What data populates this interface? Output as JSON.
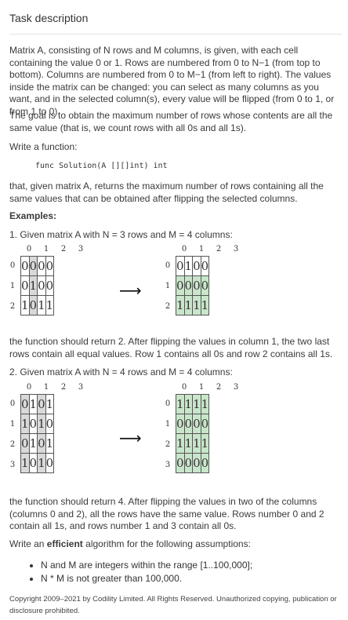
{
  "heading": "Task description",
  "paragraphs": {
    "p1": "Matrix A, consisting of N rows and M columns, is given, with each cell containing the value 0 or 1. Rows are numbered from 0 to N−1 (from top to bottom). Columns are numbered from 0 to M−1 (from left to right). The values inside the matrix can be changed: you can select as many columns as you want, and in the selected column(s), every value will be flipped (from 0 to 1, or from 1 to 0).",
    "p2": "The goal is to obtain the maximum number of rows whose contents are all the same value (that is, we count rows with all 0s and all 1s).",
    "p3": "Write a function:",
    "code": "func Solution(A [][]int) int",
    "p4": "that, given matrix A, returns the maximum number of rows containing all the same values that can be obtained after flipping the selected columns.",
    "examples_label": "Examples:",
    "ex1_intro": "1. Given matrix A with N = 3 rows and M = 4 columns:",
    "ex1_result": "the function should return 2. After flipping the values in column 1, the two last rows contain all equal values. Row 1 contains all 0s and row 2 contains all 1s.",
    "ex2_intro": "2. Given matrix A with N = 4 rows and M = 4 columns:",
    "ex2_result": "the function should return 4. After flipping the values in two of the columns (columns 0 and 2), all the rows have the same value. Rows number 0 and 2 contain all 1s, and rows number 1 and 3 contain all 0s.",
    "efficient_prefix": "Write an ",
    "efficient_word": "efficient",
    "efficient_suffix": " algorithm for the following assumptions:"
  },
  "assumptions": [
    "N and M are integers within the range [1..100,000];",
    "N * M is not greater than 100,000."
  ],
  "footer": "Copyright 2009–2021 by Codility Limited. All Rights Reserved. Unauthorized copying, publication or disclosure prohibited.",
  "arrow": "⟶",
  "example1": {
    "col_labels": [
      "0",
      "1",
      "2",
      "3"
    ],
    "row_labels": [
      "0",
      "1",
      "2"
    ],
    "before": [
      [
        "0",
        "0",
        "0",
        "0"
      ],
      [
        "0",
        "1",
        "0",
        "0"
      ],
      [
        "1",
        "0",
        "1",
        "1"
      ]
    ],
    "after": [
      [
        "0",
        "1",
        "0",
        "0"
      ],
      [
        "0",
        "0",
        "0",
        "0"
      ],
      [
        "1",
        "1",
        "1",
        "1"
      ]
    ],
    "flipped_columns": [
      1
    ],
    "uniform_rows_after": [
      1,
      2
    ]
  },
  "example2": {
    "col_labels": [
      "0",
      "1",
      "2",
      "3"
    ],
    "row_labels": [
      "0",
      "1",
      "2",
      "3"
    ],
    "before": [
      [
        "0",
        "1",
        "0",
        "1"
      ],
      [
        "1",
        "0",
        "1",
        "0"
      ],
      [
        "0",
        "1",
        "0",
        "1"
      ],
      [
        "1",
        "0",
        "1",
        "0"
      ]
    ],
    "after": [
      [
        "1",
        "1",
        "1",
        "1"
      ],
      [
        "0",
        "0",
        "0",
        "0"
      ],
      [
        "1",
        "1",
        "1",
        "1"
      ],
      [
        "0",
        "0",
        "0",
        "0"
      ]
    ],
    "flipped_columns": [
      0,
      2
    ],
    "uniform_rows_after": [
      0,
      1,
      2,
      3
    ]
  },
  "colors": {
    "flipped_highlight": "#d9d9d9",
    "uniform_highlight": "#c8e6c9"
  }
}
